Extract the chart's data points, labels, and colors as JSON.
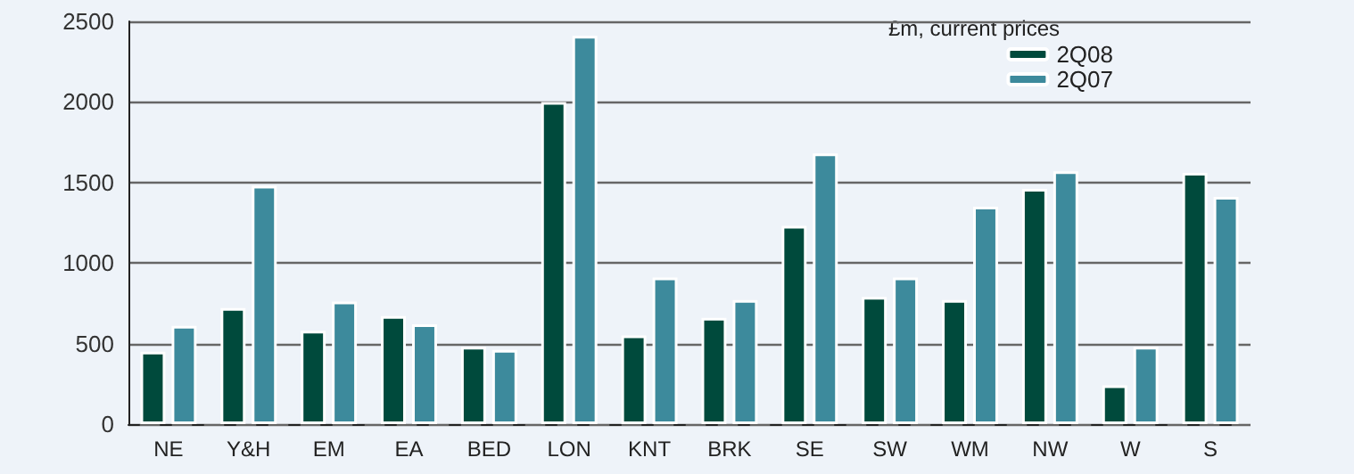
{
  "chart_data": {
    "type": "bar",
    "legend_title": "£m, current prices",
    "categories": [
      "NE",
      "Y&H",
      "EM",
      "EA",
      "BED",
      "LON",
      "KNT",
      "BRK",
      "SE",
      "SW",
      "WM",
      "NW",
      "W",
      "S"
    ],
    "series": [
      {
        "name": "2Q08",
        "color": "#004a3c",
        "values": [
          450,
          720,
          580,
          670,
          480,
          2000,
          550,
          660,
          1230,
          790,
          770,
          1460,
          240,
          1560
        ]
      },
      {
        "name": "2Q07",
        "color": "#3d8a9c",
        "values": [
          610,
          1480,
          760,
          620,
          460,
          2410,
          910,
          770,
          1680,
          910,
          1350,
          1570,
          480,
          1410
        ]
      }
    ],
    "ylim": [
      0,
      2500
    ],
    "yticks": [
      0,
      500,
      1000,
      1500,
      2000,
      2500
    ],
    "grid": "y",
    "legend": "top right"
  }
}
